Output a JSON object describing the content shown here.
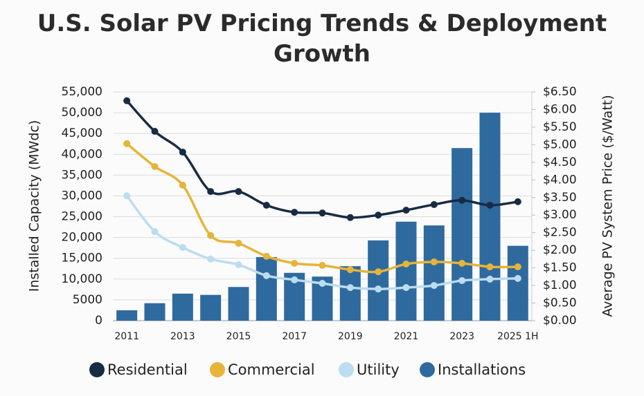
{
  "chart_data": {
    "type": "combo",
    "title": "U.S. Solar PV Pricing Trends & Deployment Growth",
    "ylabel": "Installed Capacity (MWdc)",
    "y2label": "Average PV System Price ($/Watt)",
    "categories": [
      "2011",
      null,
      "2013",
      null,
      "2015",
      null,
      "2017",
      null,
      "2019",
      null,
      "2021",
      null,
      "2023",
      null,
      "2025 1H"
    ],
    "ylim": [
      0,
      55000
    ],
    "yticks": [
      0,
      5000,
      {
        "value": 10000,
        "label": "10,000"
      },
      {
        "value": 15000,
        "label": "15,000"
      },
      {
        "value": 20000,
        "label": "20,000"
      },
      {
        "value": 25000,
        "label": "25,000"
      },
      {
        "value": 30000,
        "label": "30,000"
      },
      {
        "value": 35000,
        "label": "35,000"
      },
      {
        "value": 40000,
        "label": "40,000"
      },
      {
        "value": 45000,
        "label": "45,000"
      },
      {
        "value": 50000,
        "label": "50,000"
      },
      {
        "value": 55000,
        "label": "55,000"
      }
    ],
    "y2lim": [
      0,
      6.5
    ],
    "y2ticks": [
      {
        "value": 0,
        "label": "$0.00"
      },
      {
        "value": 0.5,
        "label": "$0.50"
      },
      {
        "value": 1,
        "label": "$1.00"
      },
      {
        "value": 1.5,
        "label": "$1.50"
      },
      {
        "value": 2,
        "label": "$2.00"
      },
      {
        "value": 2.5,
        "label": "$2.50"
      },
      {
        "value": 3,
        "label": "$3.00"
      },
      {
        "value": 3.5,
        "label": "$3.50"
      },
      {
        "value": 4,
        "label": "$4.00"
      },
      {
        "value": 4.5,
        "label": "$4.50"
      },
      {
        "value": 5,
        "label": "$5.00"
      },
      {
        "value": 5.5,
        "label": "$5.50"
      },
      {
        "value": 6,
        "label": "$6.00"
      },
      {
        "value": 6.5,
        "label": "$6.50"
      }
    ],
    "grid": true,
    "legend": "bottom",
    "series": [
      {
        "name": "Residential",
        "type": "line",
        "axis": "y2",
        "color": "#172b43",
        "values": [
          6.25,
          5.38,
          4.79,
          3.67,
          3.67,
          3.28,
          3.08,
          3.06,
          2.93,
          3.0,
          3.14,
          3.3,
          3.42,
          3.28,
          3.38
        ]
      },
      {
        "name": "Commercial",
        "type": "line",
        "axis": "y2",
        "color": "#e6b43a",
        "values": [
          5.03,
          4.38,
          3.85,
          2.42,
          2.2,
          1.83,
          1.63,
          1.57,
          1.45,
          1.39,
          1.61,
          1.67,
          1.63,
          1.53,
          1.53
        ]
      },
      {
        "name": "Utility",
        "type": "line",
        "axis": "y2",
        "color": "#bcdcf0",
        "values": [
          3.55,
          2.53,
          2.08,
          1.75,
          1.59,
          1.28,
          1.16,
          1.06,
          0.94,
          0.9,
          0.94,
          1.0,
          1.14,
          1.18,
          1.2
        ]
      },
      {
        "name": "Installations",
        "type": "bar",
        "color": "#2f6a9e",
        "values": [
          2500,
          4200,
          6500,
          6200,
          8100,
          15300,
          11500,
          10600,
          13100,
          19300,
          23800,
          22900,
          41500,
          50000,
          18000
        ]
      }
    ]
  }
}
